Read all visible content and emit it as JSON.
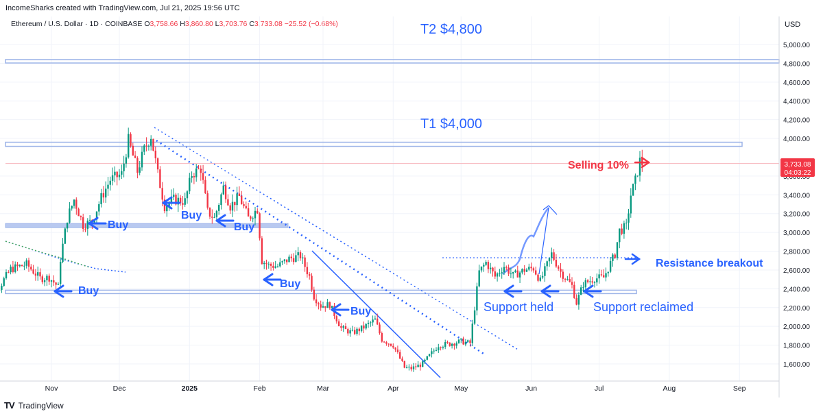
{
  "header": {
    "created_by": "IncomeSharks created with TradingView.com, Jul 21, 2025 19:56 UTC"
  },
  "symbol": {
    "name": "Ethereum / U.S. Dollar · 1D · COINBASE",
    "o_label": "O",
    "o": "3,758.66",
    "h_label": "H",
    "h": "3,860.80",
    "l_label": "L",
    "l": "3,703.76",
    "c_label": "C",
    "c": "3,733.08",
    "change": "−25.52 (−0.68%)"
  },
  "currency": "USD",
  "price_tag": {
    "price": "3,733.08",
    "countdown": "04:03:22"
  },
  "footer": {
    "brand": "TradingView",
    "logo_text": "TV"
  },
  "colors": {
    "up": "#089981",
    "down": "#f23645",
    "annotation_blue": "#2962ff",
    "zone_blue": "#9db4e8",
    "target_text": "#2962ff",
    "sell_red": "#f23645"
  },
  "chart_data": {
    "type": "candlestick",
    "title": "",
    "ylim": [
      1400,
      5200
    ],
    "yticks": [
      "1,600.00",
      "1,800.00",
      "2,000.00",
      "2,200.00",
      "2,400.00",
      "2,600.00",
      "2,800.00",
      "3,000.00",
      "3,200.00",
      "3,400.00",
      "3,600.00",
      "4,000.00",
      "4,200.00",
      "4,400.00",
      "4,600.00",
      "4,800.00",
      "5,000.00"
    ],
    "ytick_values": [
      1600,
      1800,
      2000,
      2200,
      2400,
      2600,
      2800,
      3000,
      3200,
      3400,
      3600,
      4000,
      4200,
      4400,
      4600,
      4800,
      5000
    ],
    "xticks": [
      "Nov",
      "Dec",
      "2025",
      "Feb",
      "Mar",
      "Apr",
      "May",
      "Jun",
      "Jul",
      "Aug",
      "Sep"
    ],
    "xtick_dates": [
      "2024-11-01",
      "2024-12-01",
      "2025-01-01",
      "2025-02-01",
      "2025-03-01",
      "2025-04-01",
      "2025-05-01",
      "2025-06-01",
      "2025-07-01",
      "2025-08-01",
      "2025-09-01"
    ],
    "series_anchor_close": [
      [
        "2024-10-01",
        2470
      ],
      [
        "2024-10-10",
        2420
      ],
      [
        "2024-10-15",
        2610
      ],
      [
        "2024-10-22",
        2660
      ],
      [
        "2024-10-28",
        2510
      ],
      [
        "2024-11-01",
        2520
      ],
      [
        "2024-11-05",
        2420
      ],
      [
        "2024-11-06",
        2720
      ],
      [
        "2024-11-09",
        3150
      ],
      [
        "2024-11-12",
        3350
      ],
      [
        "2024-11-16",
        3080
      ],
      [
        "2024-11-20",
        3120
      ],
      [
        "2024-11-24",
        3370
      ],
      [
        "2024-11-28",
        3560
      ],
      [
        "2024-12-03",
        3620
      ],
      [
        "2024-12-06",
        3980
      ],
      [
        "2024-12-10",
        3650
      ],
      [
        "2024-12-13",
        3880
      ],
      [
        "2024-12-16",
        4030
      ],
      [
        "2024-12-19",
        3620
      ],
      [
        "2024-12-22",
        3280
      ],
      [
        "2024-12-26",
        3350
      ],
      [
        "2024-12-31",
        3330
      ],
      [
        "2025-01-03",
        3620
      ],
      [
        "2025-01-07",
        3680
      ],
      [
        "2025-01-10",
        3220
      ],
      [
        "2025-01-13",
        3150
      ],
      [
        "2025-01-17",
        3480
      ],
      [
        "2025-01-20",
        3280
      ],
      [
        "2025-01-24",
        3380
      ],
      [
        "2025-01-28",
        3150
      ],
      [
        "2025-02-01",
        3250
      ],
      [
        "2025-02-03",
        2700
      ],
      [
        "2025-02-06",
        2650
      ],
      [
        "2025-02-10",
        2640
      ],
      [
        "2025-02-15",
        2720
      ],
      [
        "2025-02-20",
        2750
      ],
      [
        "2025-02-24",
        2530
      ],
      [
        "2025-02-26",
        2320
      ],
      [
        "2025-03-01",
        2220
      ],
      [
        "2025-03-05",
        2230
      ],
      [
        "2025-03-10",
        1980
      ],
      [
        "2025-03-15",
        1930
      ],
      [
        "2025-03-20",
        1990
      ],
      [
        "2025-03-25",
        2070
      ],
      [
        "2025-03-28",
        1860
      ],
      [
        "2025-04-02",
        1800
      ],
      [
        "2025-04-07",
        1560
      ],
      [
        "2025-04-10",
        1550
      ],
      [
        "2025-04-15",
        1600
      ],
      [
        "2025-04-22",
        1800
      ],
      [
        "2025-04-26",
        1810
      ],
      [
        "2025-05-02",
        1840
      ],
      [
        "2025-05-06",
        1820
      ],
      [
        "2025-05-08",
        2200
      ],
      [
        "2025-05-10",
        2580
      ],
      [
        "2025-05-13",
        2680
      ],
      [
        "2025-05-17",
        2530
      ],
      [
        "2025-05-21",
        2640
      ],
      [
        "2025-05-25",
        2540
      ],
      [
        "2025-05-30",
        2600
      ],
      [
        "2025-06-03",
        2620
      ],
      [
        "2025-06-06",
        2480
      ],
      [
        "2025-06-11",
        2770
      ],
      [
        "2025-06-15",
        2580
      ],
      [
        "2025-06-20",
        2430
      ],
      [
        "2025-06-22",
        2250
      ],
      [
        "2025-06-25",
        2450
      ],
      [
        "2025-06-30",
        2510
      ],
      [
        "2025-07-04",
        2520
      ],
      [
        "2025-07-09",
        2770
      ],
      [
        "2025-07-11",
        3020
      ],
      [
        "2025-07-14",
        3060
      ],
      [
        "2025-07-16",
        3400
      ],
      [
        "2025-07-18",
        3550
      ],
      [
        "2025-07-20",
        3760
      ],
      [
        "2025-07-21",
        3733
      ]
    ],
    "levels": [
      {
        "label": "T2 $4,800",
        "price": 4820
      },
      {
        "label": "T1 $4,000",
        "price": 3930
      },
      {
        "label": "support",
        "price": 3080
      },
      {
        "label": "support",
        "price": 2370
      },
      {
        "label": "resistance",
        "price": 2720
      }
    ],
    "annotations": [
      {
        "text": "T2 $4,800",
        "kind": "target"
      },
      {
        "text": "T1 $4,000",
        "kind": "target"
      },
      {
        "text": "Selling 10%",
        "kind": "sell"
      },
      {
        "text": "Buy",
        "kind": "buy"
      },
      {
        "text": "Buy",
        "kind": "buy"
      },
      {
        "text": "Buy",
        "kind": "buy"
      },
      {
        "text": "Buy",
        "kind": "buy"
      },
      {
        "text": "Buy",
        "kind": "buy"
      },
      {
        "text": "Buy",
        "kind": "buy"
      },
      {
        "text": "Resistance breakout",
        "kind": "note"
      },
      {
        "text": "Support held",
        "kind": "note"
      },
      {
        "text": "Support reclaimed",
        "kind": "note"
      }
    ]
  }
}
